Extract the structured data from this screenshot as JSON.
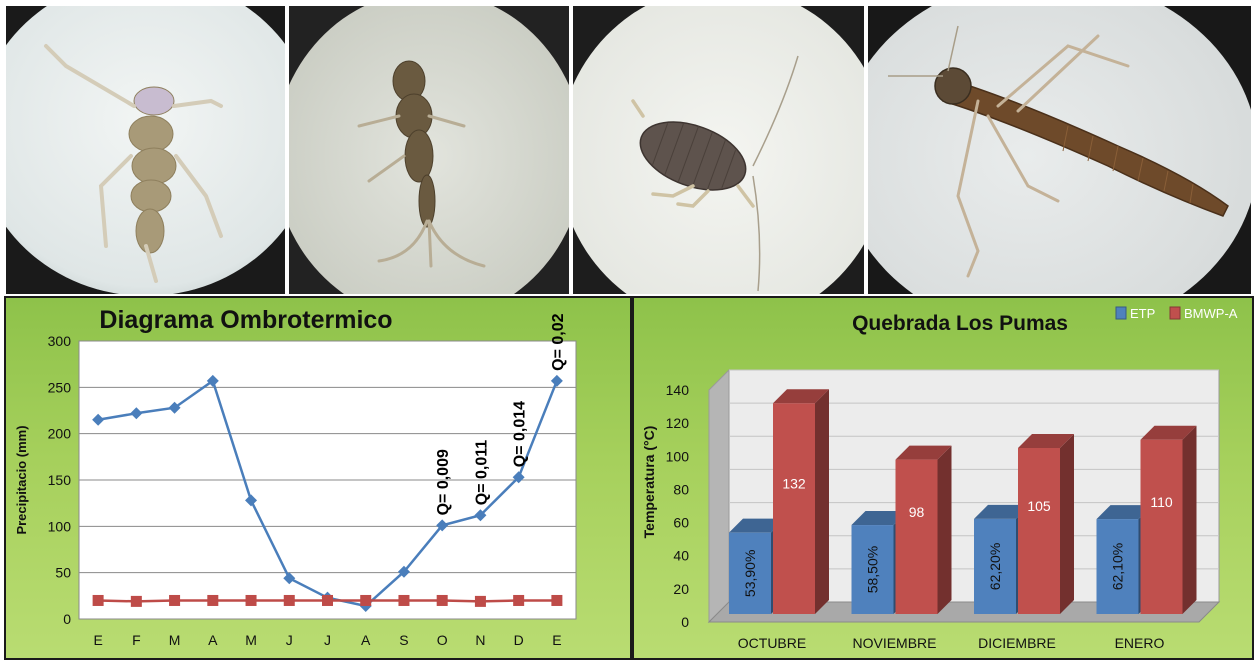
{
  "photos": [
    {
      "subject": "insect-larva-specimen-1"
    },
    {
      "subject": "insect-larva-specimen-2"
    },
    {
      "subject": "insect-larva-specimen-3"
    },
    {
      "subject": "insect-larva-specimen-4"
    }
  ],
  "chart_data": [
    {
      "type": "line",
      "title": "Diagrama Ombrotermico",
      "ylabel": "Precipitacio  (mm)",
      "xlabel": "",
      "ylim": [
        0,
        300
      ],
      "yticks": [
        0,
        50,
        100,
        150,
        200,
        250,
        300
      ],
      "categories": [
        "E",
        "F",
        "M",
        "A",
        "M",
        "J",
        "J",
        "A",
        "S",
        "O",
        "N",
        "D",
        "E"
      ],
      "grid": true,
      "series": [
        {
          "values": [
            215,
            222,
            228,
            257,
            128,
            44,
            23,
            14,
            51,
            101,
            112,
            153,
            257
          ],
          "color": "#4a7ebb",
          "marker": "diamond"
        },
        {
          "values": [
            20,
            19,
            20,
            20,
            20,
            20,
            20,
            20,
            20,
            20,
            19,
            20,
            20
          ],
          "color": "#be4b48",
          "marker": "square"
        }
      ],
      "annotations": [
        {
          "index": 9,
          "text": "Q= 0,009"
        },
        {
          "index": 10,
          "text": "Q= 0,011"
        },
        {
          "index": 11,
          "text": "Q= 0,014"
        },
        {
          "index": 12,
          "text": "Q= 0,02"
        }
      ]
    },
    {
      "type": "bar",
      "title": "Quebrada Los Pumas",
      "ylabel": "Temperatura (°C)",
      "xlabel": "",
      "ylim": [
        0,
        140
      ],
      "yticks": [
        0,
        20,
        40,
        60,
        80,
        100,
        120,
        140
      ],
      "categories": [
        "OCTUBRE",
        "NOVIEMBRE",
        "DICIEMBRE",
        "ENERO"
      ],
      "legend_position": "top-right",
      "series": [
        {
          "name": "ETP",
          "values": [
            53.9,
            58.5,
            62.2,
            62.1
          ],
          "labels": [
            "53,90%",
            "58,50%",
            "62,20%",
            "62,10%"
          ],
          "color": "#4f81bd"
        },
        {
          "name": "BMWP-A",
          "values": [
            132,
            98,
            105,
            110
          ],
          "labels": [
            "132",
            "98",
            "105",
            "110"
          ],
          "color": "#c0504d"
        }
      ]
    }
  ]
}
